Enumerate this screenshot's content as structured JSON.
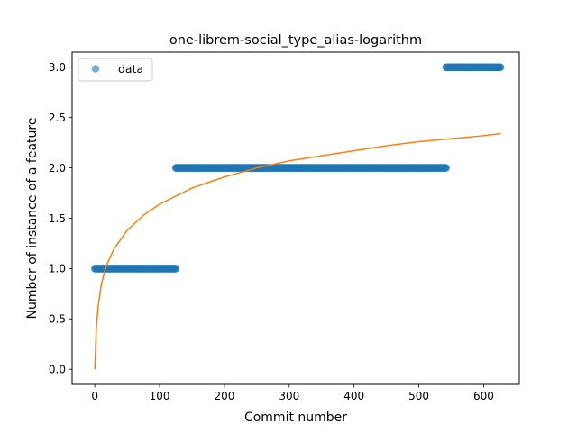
{
  "chart_data": {
    "type": "scatter",
    "title": "one-librem-social_type_alias-logarithm",
    "xlabel": "Commit number",
    "ylabel": "Number of instance of a feature",
    "xlim": [
      -35,
      655
    ],
    "ylim": [
      -0.15,
      3.15
    ],
    "xticks": [
      0,
      100,
      200,
      300,
      400,
      500,
      600
    ],
    "yticks": [
      0.0,
      0.5,
      1.0,
      1.5,
      2.0,
      2.5,
      3.0
    ],
    "xtick_labels": [
      "0",
      "100",
      "200",
      "300",
      "400",
      "500",
      "600"
    ],
    "ytick_labels": [
      "0.0",
      "0.5",
      "1.0",
      "1.5",
      "2.0",
      "2.5",
      "3.0"
    ],
    "grid": false,
    "legend": {
      "position": "top-left",
      "entries": [
        "data"
      ]
    },
    "series": [
      {
        "name": "data",
        "kind": "scatter",
        "color": "#1f77b4",
        "segments": [
          {
            "x_start": 0,
            "x_end": 125,
            "y": 1
          },
          {
            "x_start": 125,
            "x_end": 542,
            "y": 2
          },
          {
            "x_start": 542,
            "x_end": 626,
            "y": 3
          }
        ]
      },
      {
        "kind": "line",
        "color": "#ff7f0e",
        "fit": "logarithmic",
        "x_range": [
          0,
          626
        ],
        "samples": [
          [
            0,
            0.0
          ],
          [
            2,
            0.36
          ],
          [
            5,
            0.62
          ],
          [
            10,
            0.84
          ],
          [
            15,
            0.97
          ],
          [
            20,
            1.06
          ],
          [
            30,
            1.2
          ],
          [
            50,
            1.38
          ],
          [
            75,
            1.53
          ],
          [
            100,
            1.64
          ],
          [
            150,
            1.8
          ],
          [
            200,
            1.91
          ],
          [
            250,
            2.0
          ],
          [
            300,
            2.07
          ],
          [
            350,
            2.12
          ],
          [
            400,
            2.17
          ],
          [
            450,
            2.22
          ],
          [
            500,
            2.26
          ],
          [
            550,
            2.29
          ],
          [
            600,
            2.32
          ],
          [
            626,
            2.34
          ]
        ]
      }
    ]
  }
}
